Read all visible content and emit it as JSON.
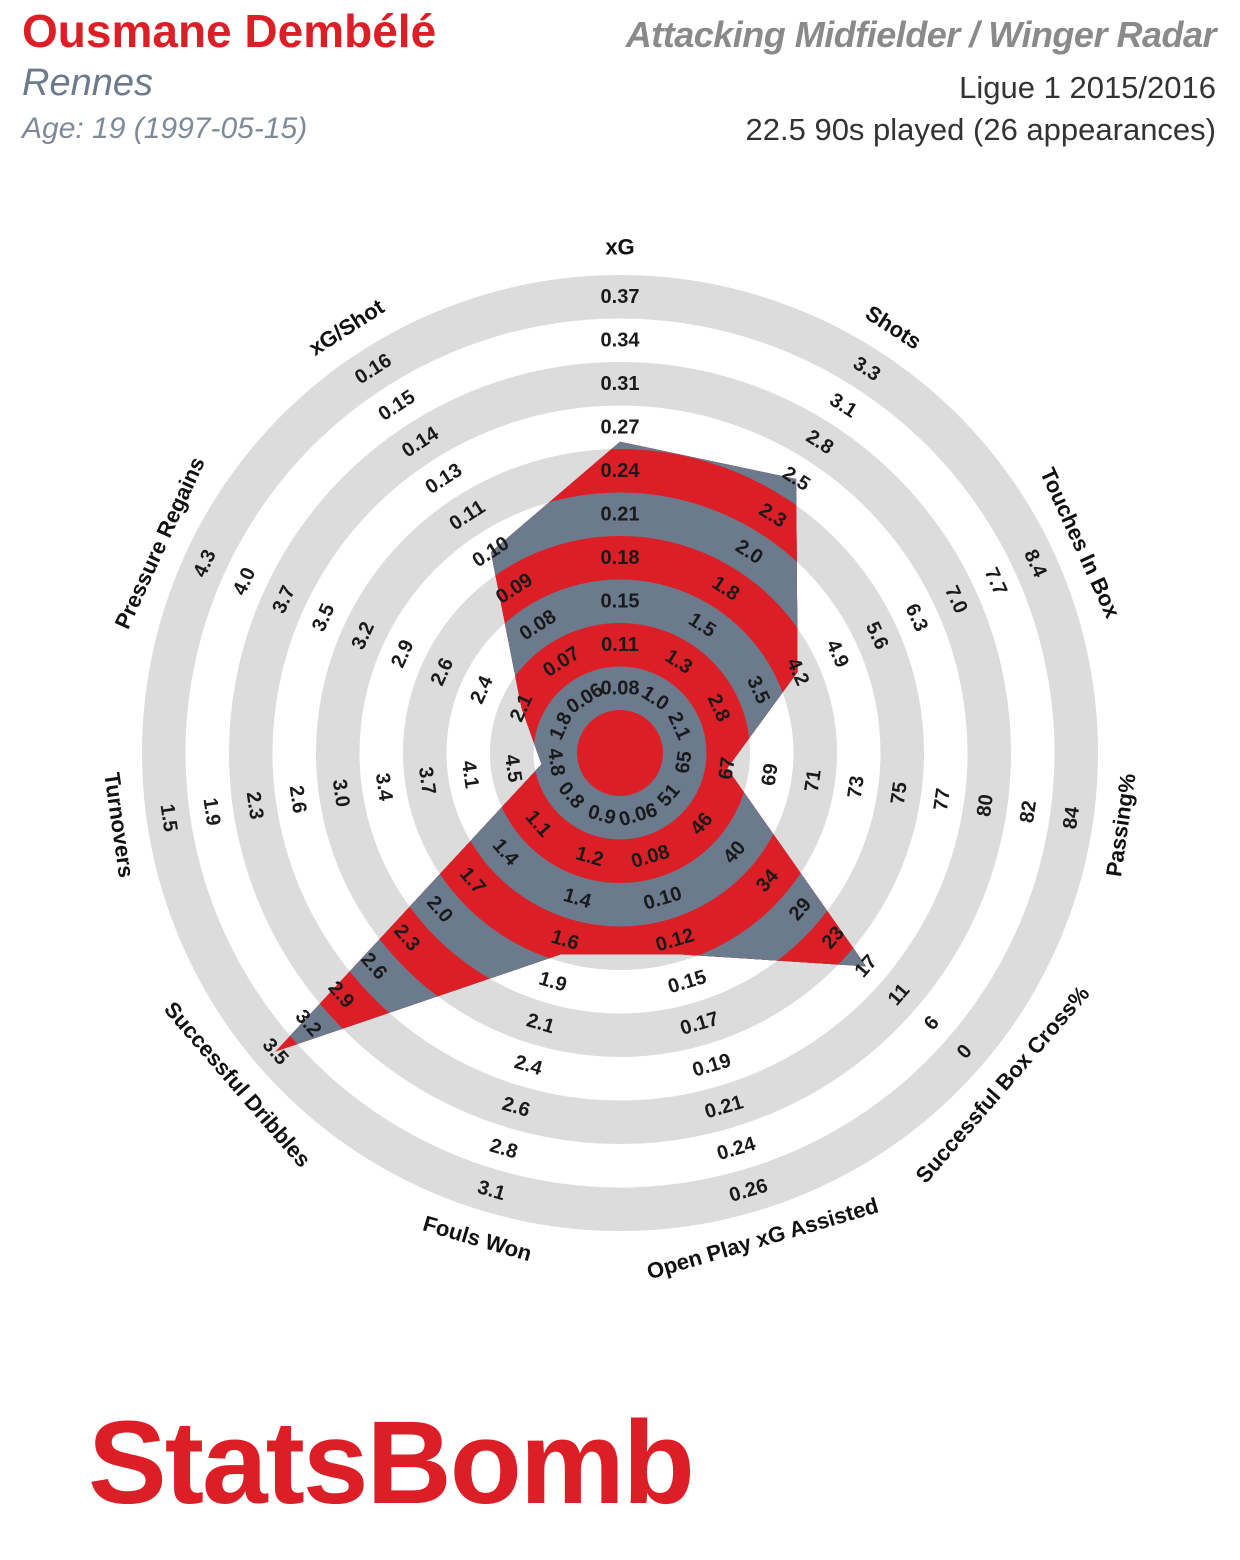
{
  "header": {
    "player_name": "Ousmane Dembélé",
    "team": "Rennes",
    "age_line": "Age: 19 (1997-05-15)",
    "radar_title": "Attacking Midfielder / Winger Radar",
    "competition": "Ligue 1 2015/2016",
    "minutes_line": "22.5 90s played (26 appearances)"
  },
  "brand": {
    "logo_text": "StatsBomb"
  },
  "colors": {
    "ring_gray": "#dcdcdc",
    "player_red": "#dc1f26",
    "player_slate": "#6b7a8c",
    "title_red": "#dc1f26"
  },
  "chart_data": {
    "type": "radar",
    "title": "Attacking Midfielder / Winger Radar",
    "rings": 10,
    "axes": [
      {
        "label": "xG",
        "ticks": [
          "0.08",
          "0.11",
          "0.15",
          "0.18",
          "0.21",
          "0.24",
          "0.27",
          "0.31",
          "0.34",
          "0.37"
        ],
        "value": 0.26
      },
      {
        "label": "Shots",
        "ticks": [
          "1.0",
          "1.3",
          "1.5",
          "1.8",
          "2.0",
          "2.3",
          "2.5",
          "2.8",
          "3.1",
          "3.3"
        ],
        "value": 2.5
      },
      {
        "label": "Touches In Box",
        "ticks": [
          "2.1",
          "2.8",
          "3.5",
          "4.2",
          "4.9",
          "5.6",
          "6.3",
          "7.0",
          "7.7",
          "8.4"
        ],
        "value": 4.2
      },
      {
        "label": "Passing%",
        "ticks": [
          "65",
          "67",
          "69",
          "71",
          "73",
          "75",
          "77",
          "80",
          "82",
          "84"
        ],
        "value": 67
      },
      {
        "label": "Successful Box Cross%",
        "ticks": [
          "51",
          "46",
          "40",
          "34",
          "29",
          "23",
          "17",
          "11",
          "6",
          "0"
        ],
        "value": 17
      },
      {
        "label": "Open Play xG Assisted",
        "ticks": [
          "0.06",
          "0.08",
          "0.10",
          "0.12",
          "0.15",
          "0.17",
          "0.19",
          "0.21",
          "0.24",
          "0.26"
        ],
        "value": 0.13
      },
      {
        "label": "Fouls Won",
        "ticks": [
          "0.9",
          "1.2",
          "1.4",
          "1.6",
          "1.9",
          "2.1",
          "2.4",
          "2.6",
          "2.8",
          "3.1"
        ],
        "value": 1.7
      },
      {
        "label": "Successful Dribbles",
        "ticks": [
          "0.8",
          "1.1",
          "1.4",
          "1.7",
          "2.0",
          "2.3",
          "2.6",
          "2.9",
          "3.2",
          "3.5"
        ],
        "value": 3.5
      },
      {
        "label": "Turnovers",
        "ticks": [
          "4.8",
          "4.5",
          "4.1",
          "3.7",
          "3.4",
          "3.0",
          "2.6",
          "2.3",
          "1.9",
          "1.5"
        ],
        "value": 4.7
      },
      {
        "label": "Pressure Regains",
        "ticks": [
          "1.8",
          "2.1",
          "2.4",
          "2.6",
          "2.9",
          "3.2",
          "3.5",
          "3.7",
          "4.0",
          "4.3"
        ],
        "value": 2.1
      },
      {
        "label": "xG/Shot",
        "ticks": [
          "0.06",
          "0.07",
          "0.08",
          "0.09",
          "0.10",
          "0.11",
          "0.13",
          "0.14",
          "0.15",
          "0.16"
        ],
        "value": 0.1
      }
    ]
  }
}
